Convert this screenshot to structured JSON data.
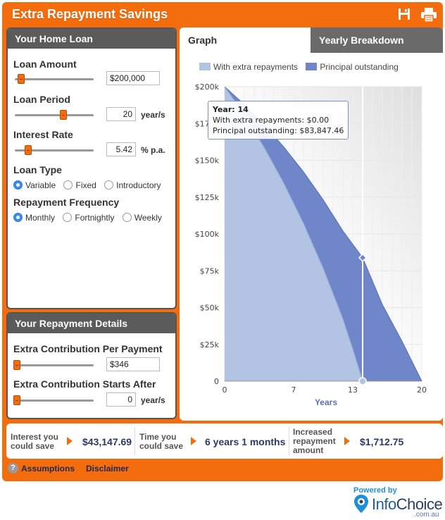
{
  "app": {
    "title": "Extra Repayment Savings"
  },
  "home_loan": {
    "heading": "Your Home Loan",
    "loan_amount": {
      "label": "Loan Amount",
      "value": "$200,000"
    },
    "loan_period": {
      "label": "Loan Period",
      "value": "20",
      "unit": "year/s"
    },
    "interest_rate": {
      "label": "Interest Rate",
      "value": "5.42",
      "unit": "% p.a."
    },
    "loan_type": {
      "label": "Loan Type",
      "options": [
        "Variable",
        "Fixed",
        "Introductory"
      ],
      "selected": "Variable"
    },
    "repayment_frequency": {
      "label": "Repayment Frequency",
      "options": [
        "Monthly",
        "Fortnightly",
        "Weekly"
      ],
      "selected": "Monthly"
    }
  },
  "repayment_details": {
    "heading": "Your Repayment Details",
    "extra_contribution": {
      "label": "Extra Contribution Per Payment",
      "value": "$346"
    },
    "starts_after": {
      "label": "Extra Contribution Starts After",
      "value": "0",
      "unit": "year/s"
    }
  },
  "tabs": [
    {
      "label": "Graph",
      "active": true
    },
    {
      "label": "Yearly Breakdown",
      "active": false
    }
  ],
  "tooltip": {
    "title": "Year: 14",
    "line1": "With extra repayments: $0.00",
    "line2": "Principal outstanding: $83,847.46"
  },
  "chart_data": {
    "type": "area",
    "xlabel": "Years",
    "xticks": [
      "0",
      "7",
      "13",
      "20"
    ],
    "yticks": [
      "0",
      "$25k",
      "$50k",
      "$75k",
      "$100k",
      "$125k",
      "$150k",
      "$175k",
      "$200k"
    ],
    "xlim": [
      0,
      20
    ],
    "ylim": [
      0,
      200000
    ],
    "highlight_year": 14,
    "series": [
      {
        "name": "With extra repayments",
        "color": "#b3c3e3",
        "x": [
          0,
          2,
          4,
          6,
          8,
          10,
          12,
          13,
          14
        ],
        "values": [
          200000,
          180600,
          158800,
          134400,
          107100,
          76500,
          42200,
          21800,
          0
        ]
      },
      {
        "name": "Principal outstanding",
        "color": "#6f86c8",
        "x": [
          0,
          2,
          4,
          6,
          8,
          10,
          12,
          14,
          16,
          18,
          20
        ],
        "values": [
          200000,
          187800,
          174200,
          159000,
          142100,
          123100,
          102000,
          83847,
          52000,
          27000,
          0
        ]
      }
    ]
  },
  "summary": {
    "interest_label_1": "Interest you",
    "interest_label_2": "could save",
    "interest_value": "$43,147.69",
    "time_label_1": "Time you",
    "time_label_2": "could save",
    "time_value": "6 years 1 months",
    "increased_label_1": "Increased",
    "increased_label_2": "repayment",
    "increased_label_3": "amount",
    "increased_value": "$1,712.75"
  },
  "footer": {
    "help_glyph": "?",
    "assumptions": "Assumptions",
    "disclaimer": "Disclaimer"
  },
  "brand": {
    "powered_by": "Powered by",
    "name_a": "Info",
    "name_b": "Choice",
    "domain": ".com.au"
  },
  "colors": {
    "accent": "#f36d0f",
    "panel_header": "#5b5b5b",
    "series_light": "#b3c3e3",
    "series_dark": "#6f86c8"
  }
}
